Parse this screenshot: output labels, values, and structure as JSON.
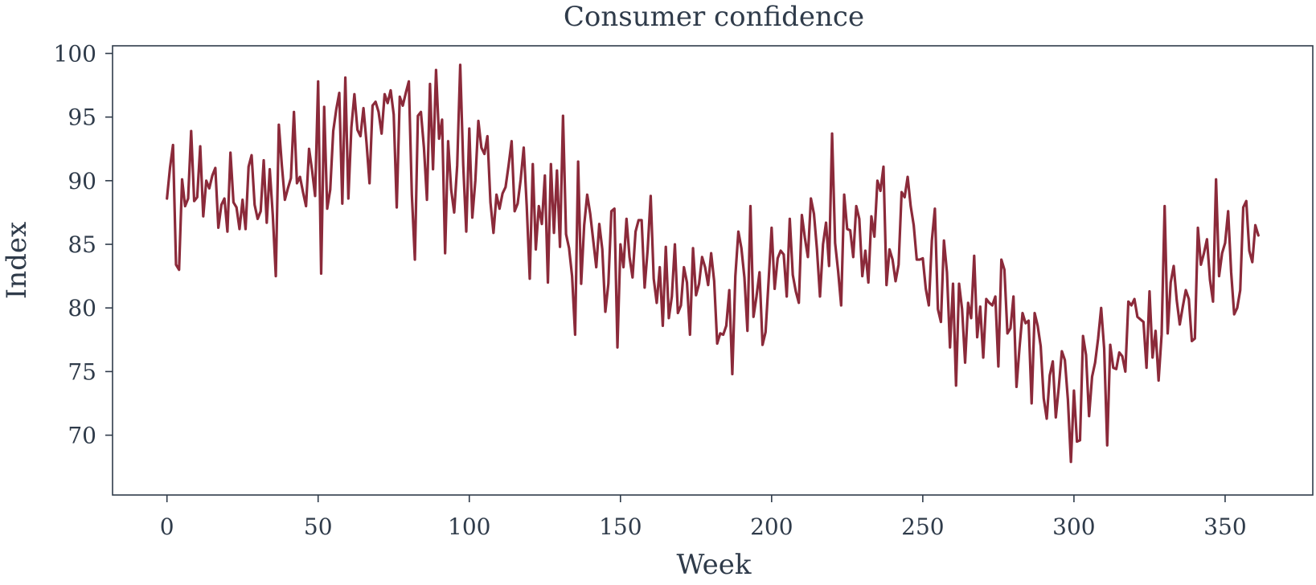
{
  "chart_data": {
    "type": "line",
    "title": "Consumer confidence",
    "xlabel": "Week",
    "ylabel": "Index",
    "xlim": [
      -18,
      379
    ],
    "ylim": [
      65.3,
      100.6
    ],
    "xticks": [
      0,
      50,
      100,
      150,
      200,
      250,
      300,
      350
    ],
    "yticks": [
      70,
      75,
      80,
      85,
      90,
      95,
      100
    ],
    "grid": false,
    "legend": "none",
    "series": [
      {
        "color": "#8b2a3a",
        "x_start": 0,
        "x_step": 1,
        "values": [
          88.6,
          91.0,
          92.8,
          83.4,
          83.0,
          90.1,
          88.0,
          88.6,
          93.9,
          88.4,
          88.7,
          92.7,
          87.2,
          90.0,
          89.4,
          90.4,
          91.0,
          86.3,
          88.1,
          88.6,
          86.0,
          92.2,
          88.3,
          87.9,
          86.2,
          88.5,
          86.2,
          91.1,
          92.0,
          88.1,
          87.0,
          87.6,
          91.6,
          86.7,
          90.9,
          87.3,
          82.5,
          94.4,
          91.2,
          88.5,
          89.4,
          90.2,
          95.4,
          89.8,
          90.3,
          89.1,
          88.0,
          92.5,
          90.8,
          88.8,
          97.8,
          82.7,
          95.8,
          87.8,
          89.3,
          93.9,
          95.6,
          96.9,
          88.2,
          98.1,
          88.6,
          94.2,
          96.8,
          94.0,
          93.5,
          95.7,
          93.0,
          89.8,
          95.9,
          96.2,
          95.4,
          93.7,
          96.8,
          96.1,
          97.1,
          95.2,
          87.9,
          96.6,
          95.9,
          96.9,
          97.8,
          88.9,
          83.8,
          95.1,
          95.4,
          92.6,
          88.5,
          97.6,
          90.9,
          98.7,
          93.3,
          94.8,
          84.3,
          93.1,
          89.3,
          87.5,
          91.2,
          99.1,
          91.2,
          86.0,
          94.1,
          87.1,
          90.0,
          94.7,
          92.6,
          92.1,
          93.5,
          88.3,
          85.9,
          88.9,
          87.8,
          89.0,
          89.5,
          91.2,
          93.1,
          87.6,
          88.2,
          90.1,
          92.6,
          88.0,
          82.3,
          91.3,
          84.6,
          88.0,
          86.6,
          90.4,
          82.0,
          91.3,
          85.9,
          90.8,
          84.8,
          95.1,
          85.8,
          84.7,
          82.5,
          77.9,
          91.5,
          81.9,
          86.5,
          88.9,
          87.4,
          85.3,
          83.2,
          86.6,
          84.6,
          79.7,
          81.9,
          87.6,
          87.8,
          76.9,
          85.0,
          83.2,
          87.0,
          84.0,
          82.4,
          86.0,
          86.9,
          86.9,
          81.6,
          84.6,
          88.8,
          82.3,
          80.4,
          83.2,
          78.6,
          84.8,
          79.2,
          80.9,
          85.0,
          79.6,
          80.2,
          83.2,
          82.0,
          77.9,
          84.7,
          81.0,
          81.9,
          84.0,
          83.2,
          81.8,
          84.3,
          82.1,
          77.2,
          78.0,
          77.9,
          78.6,
          81.4,
          74.8,
          82.5,
          86.0,
          84.7,
          82.4,
          78.2,
          88.0,
          79.3,
          80.9,
          82.8,
          77.1,
          78.1,
          82.1,
          86.3,
          81.5,
          83.9,
          84.5,
          84.2,
          80.9,
          87.0,
          82.6,
          81.3,
          80.4,
          87.3,
          85.5,
          84.0,
          88.6,
          87.4,
          84.6,
          80.9,
          85.0,
          86.7,
          83.3,
          93.7,
          85.1,
          82.9,
          80.2,
          88.9,
          86.2,
          86.1,
          84.0,
          88.0,
          87.0,
          82.5,
          84.5,
          82.0,
          87.2,
          85.6,
          90.0,
          89.2,
          91.1,
          81.8,
          84.6,
          83.8,
          82.1,
          83.4,
          89.1,
          88.7,
          90.3,
          88.0,
          86.5,
          83.8,
          83.8,
          83.9,
          81.5,
          80.2,
          85.3,
          87.8,
          79.9,
          78.9,
          85.3,
          82.8,
          76.9,
          81.9,
          73.9,
          81.9,
          79.9,
          75.7,
          80.4,
          79.2,
          84.1,
          77.7,
          80.1,
          76.1,
          80.7,
          80.4,
          80.2,
          80.9,
          75.4,
          83.8,
          83.0,
          78.0,
          78.4,
          80.9,
          73.8,
          76.9,
          79.6,
          78.8,
          79.0,
          72.5,
          79.6,
          78.6,
          77.0,
          72.9,
          71.3,
          74.7,
          75.8,
          71.4,
          73.8,
          76.6,
          75.9,
          72.8,
          67.9,
          73.5,
          69.5,
          69.6,
          77.8,
          76.3,
          71.5,
          74.6,
          75.7,
          77.6,
          80.0,
          76.8,
          69.2,
          77.1,
          75.3,
          75.2,
          76.5,
          76.2,
          75.0,
          80.5,
          80.2,
          80.7,
          79.3,
          79.1,
          78.9,
          75.3,
          81.3,
          76.1,
          78.2,
          74.3,
          77.9,
          88.0,
          78.0,
          82.0,
          83.3,
          80.6,
          78.7,
          80.1,
          81.4,
          80.7,
          77.4,
          77.6,
          86.3,
          83.4,
          84.3,
          85.4,
          82.2,
          80.5,
          90.1,
          82.5,
          84.3,
          85.1,
          87.6,
          82.8,
          79.5,
          80.0,
          81.4,
          87.9,
          88.4,
          84.5,
          83.6,
          86.5,
          85.7
        ]
      }
    ]
  }
}
